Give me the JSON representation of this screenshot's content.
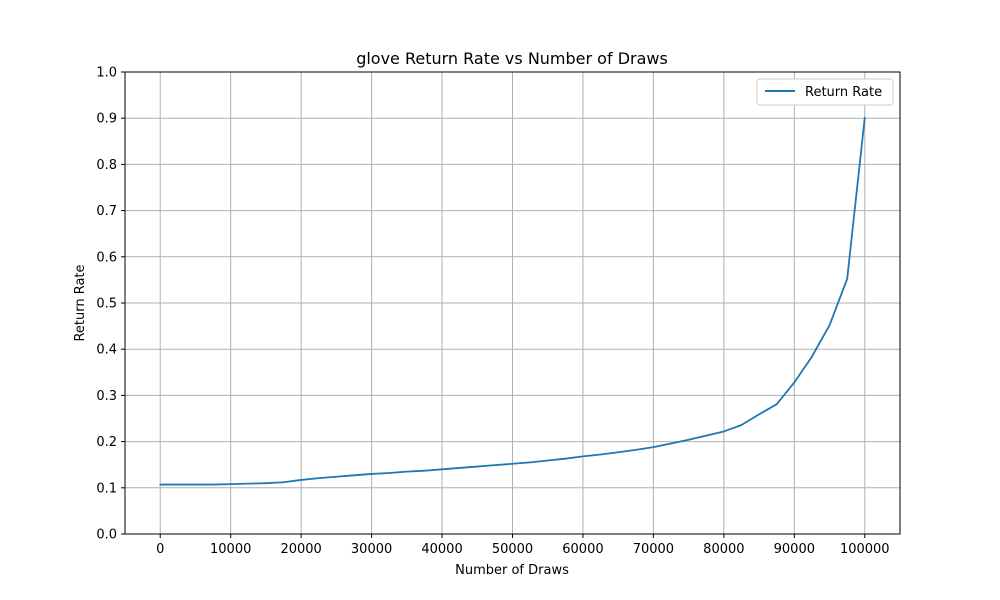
{
  "chart_data": {
    "type": "line",
    "title": "glove Return Rate vs Number of Draws",
    "xlabel": "Number of Draws",
    "ylabel": "Return Rate",
    "xlim": [
      -5000,
      105000
    ],
    "ylim": [
      0,
      1
    ],
    "x_ticks": [
      0,
      10000,
      20000,
      30000,
      40000,
      50000,
      60000,
      70000,
      80000,
      90000,
      100000
    ],
    "y_ticks": [
      0.0,
      0.1,
      0.2,
      0.3,
      0.4,
      0.5,
      0.6,
      0.7,
      0.8,
      0.9,
      1.0
    ],
    "x_tick_labels": [
      "0",
      "10000",
      "20000",
      "30000",
      "40000",
      "50000",
      "60000",
      "70000",
      "80000",
      "90000",
      "100000"
    ],
    "y_tick_labels": [
      "0.0",
      "0.1",
      "0.2",
      "0.3",
      "0.4",
      "0.5",
      "0.6",
      "0.7",
      "0.8",
      "0.9",
      "1.0"
    ],
    "grid": true,
    "legend_position": "top-right",
    "series": [
      {
        "name": "Return Rate",
        "color": "#1f77b4",
        "x": [
          0,
          2500,
          5000,
          7500,
          10000,
          12500,
          15000,
          17500,
          20000,
          22500,
          25000,
          27500,
          30000,
          32500,
          35000,
          37500,
          40000,
          42500,
          45000,
          47500,
          50000,
          52500,
          55000,
          57500,
          60000,
          62500,
          65000,
          67500,
          70000,
          72500,
          75000,
          77500,
          80000,
          82500,
          85000,
          87500,
          90000,
          92500,
          95000,
          97500,
          100000
        ],
        "values": [
          0.107,
          0.107,
          0.107,
          0.107,
          0.108,
          0.109,
          0.11,
          0.112,
          0.117,
          0.121,
          0.124,
          0.127,
          0.13,
          0.132,
          0.135,
          0.137,
          0.14,
          0.143,
          0.146,
          0.149,
          0.152,
          0.155,
          0.159,
          0.163,
          0.168,
          0.172,
          0.177,
          0.182,
          0.188,
          0.196,
          0.204,
          0.213,
          0.222,
          0.236,
          0.259,
          0.281,
          0.328,
          0.384,
          0.452,
          0.552,
          0.901
        ]
      }
    ]
  }
}
